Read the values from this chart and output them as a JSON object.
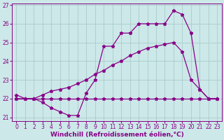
{
  "xlabel": "Windchill (Refroidissement éolien,°C)",
  "background_color": "#cce8e8",
  "line_color": "#880088",
  "grid_color": "#aacccc",
  "xlim": [
    -0.5,
    23.5
  ],
  "ylim": [
    20.8,
    27.1
  ],
  "yticks": [
    21,
    22,
    23,
    24,
    25,
    26,
    27
  ],
  "xticks": [
    0,
    1,
    2,
    3,
    4,
    5,
    6,
    7,
    8,
    9,
    10,
    11,
    12,
    13,
    14,
    15,
    16,
    17,
    18,
    19,
    20,
    21,
    22,
    23
  ],
  "series1_x": [
    0,
    1,
    2,
    3,
    4,
    5,
    6,
    7,
    8,
    9,
    10,
    11,
    12,
    13,
    14,
    15,
    16,
    17,
    18,
    19,
    20,
    21,
    22,
    23
  ],
  "series1_y": [
    22.0,
    22.0,
    22.0,
    22.0,
    22.0,
    22.0,
    22.0,
    22.0,
    22.0,
    22.0,
    22.0,
    22.0,
    22.0,
    22.0,
    22.0,
    22.0,
    22.0,
    22.0,
    22.0,
    22.0,
    22.0,
    22.0,
    22.0,
    22.0
  ],
  "series2_x": [
    0,
    1,
    2,
    3,
    4,
    5,
    6,
    7,
    8,
    9,
    10,
    11,
    12,
    13,
    14,
    15,
    16,
    17,
    18,
    19,
    20,
    21,
    22,
    23
  ],
  "series2_y": [
    22.0,
    22.0,
    22.0,
    22.2,
    22.4,
    22.5,
    22.6,
    22.8,
    23.0,
    23.3,
    23.5,
    23.8,
    24.0,
    24.3,
    24.5,
    24.7,
    24.8,
    24.9,
    25.0,
    24.5,
    23.0,
    22.5,
    22.0,
    22.0
  ],
  "series3_x": [
    0,
    1,
    2,
    3,
    4,
    5,
    6,
    7,
    8,
    9,
    10,
    11,
    12,
    13,
    14,
    15,
    16,
    17,
    18,
    19,
    20,
    21,
    22,
    23
  ],
  "series3_y": [
    22.2,
    22.0,
    22.0,
    21.8,
    21.5,
    21.3,
    21.1,
    21.1,
    22.3,
    23.0,
    24.8,
    24.8,
    25.5,
    25.5,
    26.0,
    26.0,
    26.0,
    26.0,
    26.7,
    26.5,
    25.5,
    22.5,
    22.0,
    22.0
  ],
  "tick_fontsize": 5.5,
  "xlabel_fontsize": 6.5,
  "marker": "*",
  "markersize": 3.5,
  "linewidth": 0.9
}
